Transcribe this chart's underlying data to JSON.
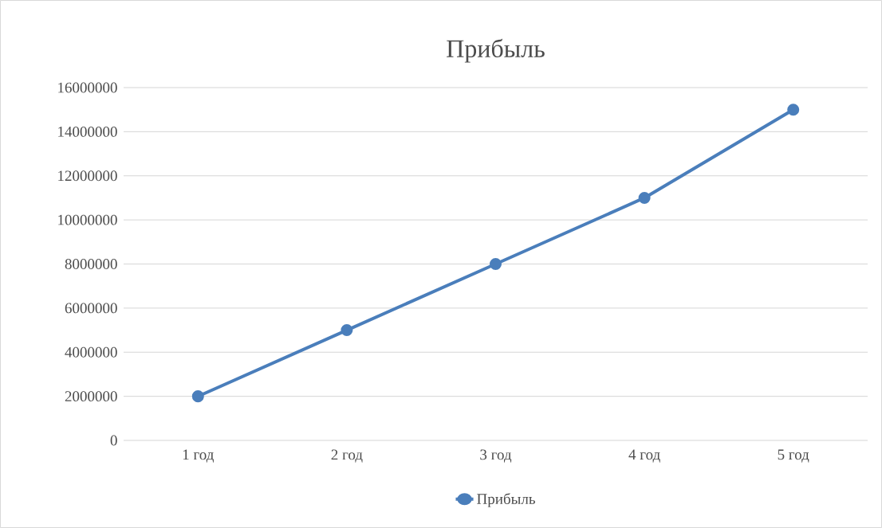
{
  "chart_data": {
    "type": "line",
    "title": "Прибыль",
    "categories": [
      "1 год",
      "2 год",
      "3 год",
      "4 год",
      "5 год"
    ],
    "series": [
      {
        "name": "Прибыль",
        "color": "#4a7ebb",
        "values": [
          2000000,
          5000000,
          8000000,
          11000000,
          15000000
        ]
      }
    ],
    "ylim": [
      0,
      16000000
    ],
    "yticks": [
      0,
      2000000,
      4000000,
      6000000,
      8000000,
      10000000,
      12000000,
      14000000,
      16000000
    ],
    "grid": "y",
    "legend": "bottom",
    "marker": "circle",
    "line_style": "solid"
  }
}
